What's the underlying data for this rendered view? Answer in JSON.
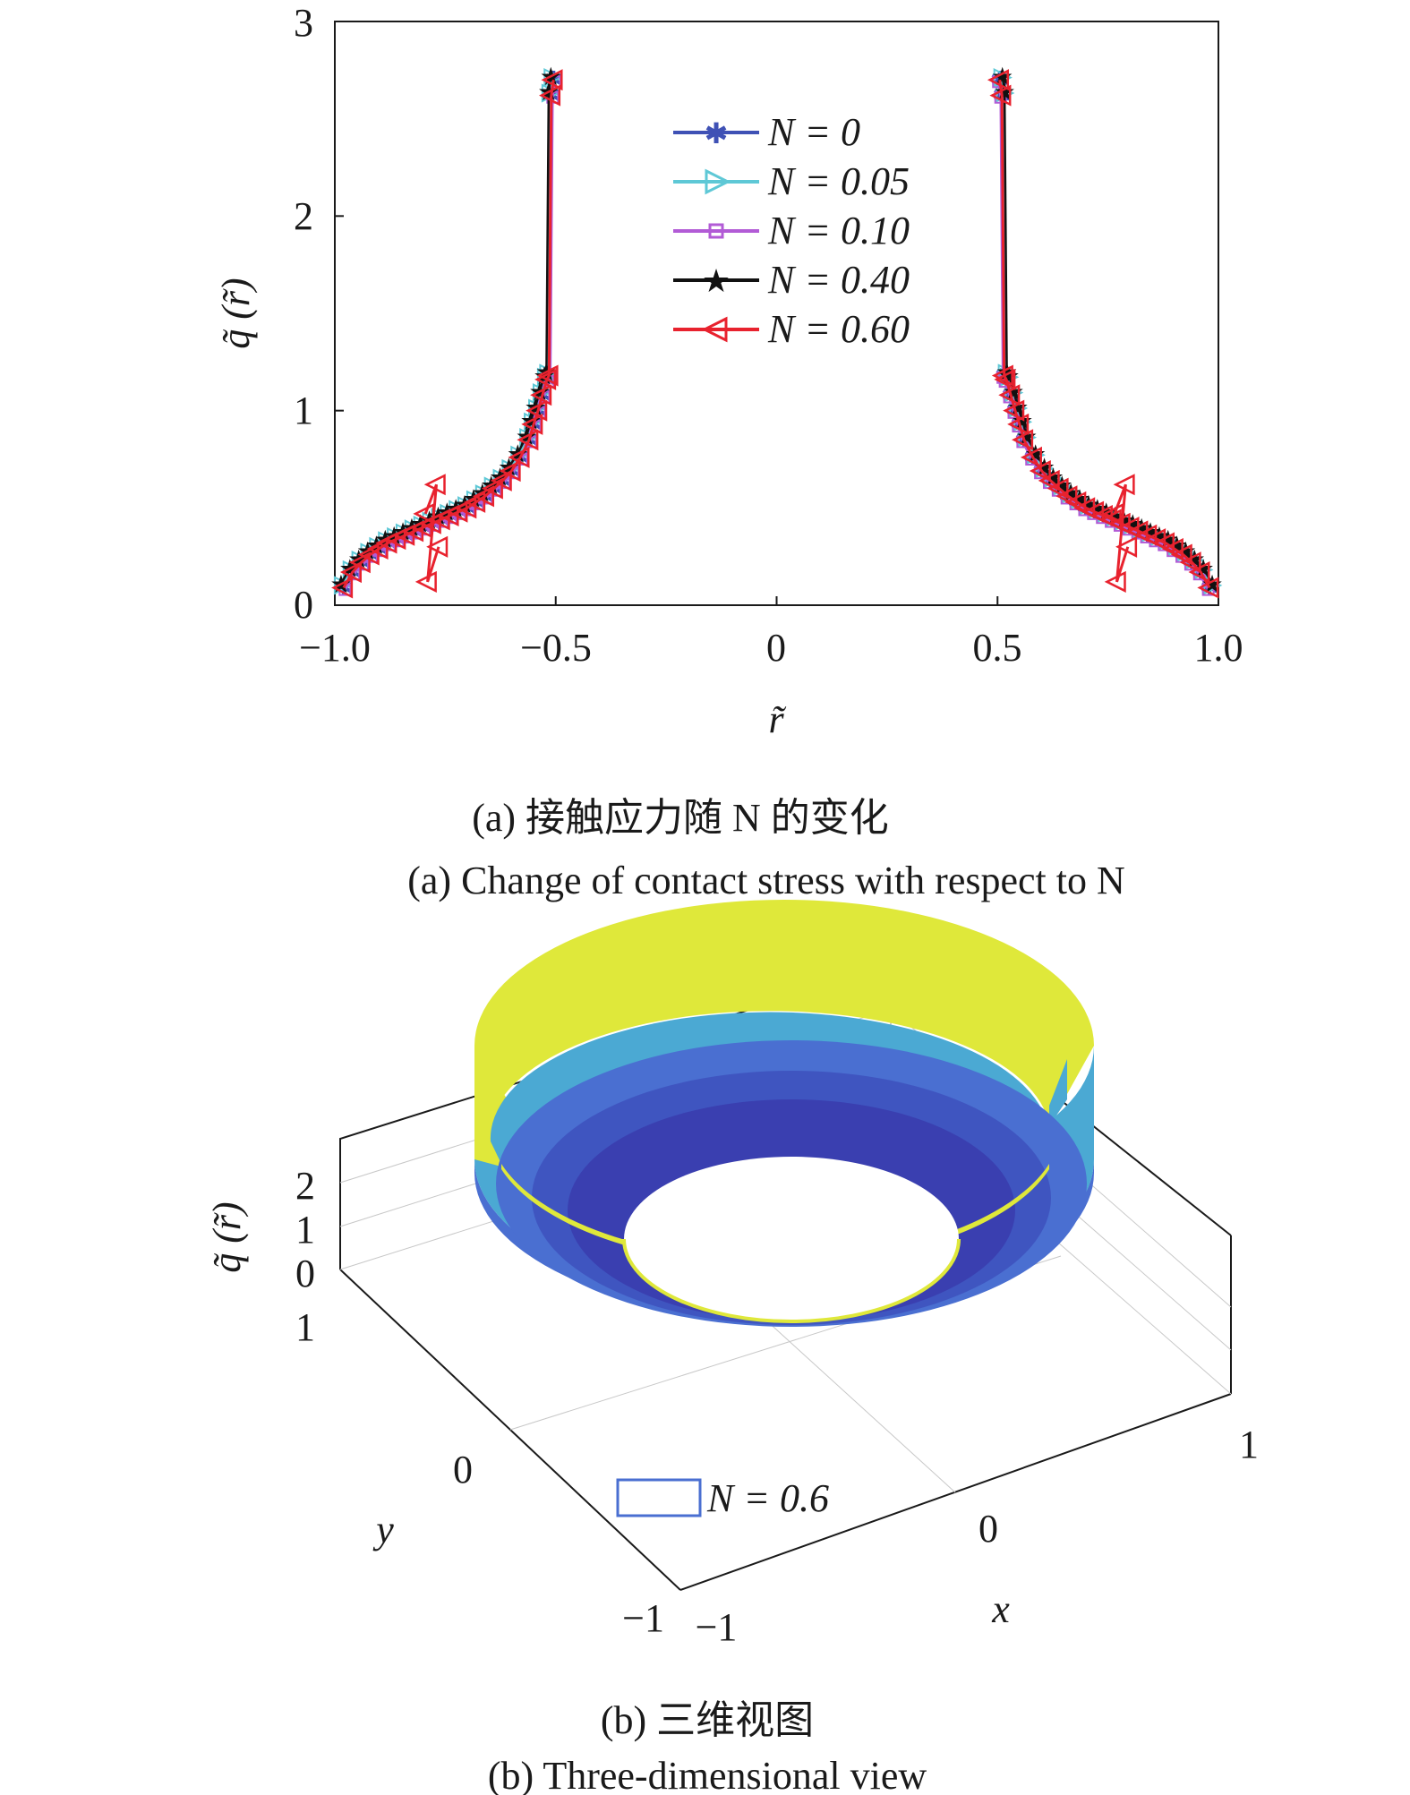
{
  "chart_data": [
    {
      "id": "a",
      "type": "line",
      "caption_zh": "(a) 接触应力随 N 的变化",
      "caption_en": "(a) Change of contact stress with respect to N",
      "xlabel": "r̃",
      "ylabel": "q̃ (r̃)",
      "xlim": [
        -1.0,
        1.0
      ],
      "ylim": [
        0,
        3
      ],
      "xticks": [
        "−1.0",
        "−0.5",
        "0",
        "0.5",
        "1.0"
      ],
      "xtick_values": [
        -1.0,
        -0.5,
        0,
        0.5,
        1.0
      ],
      "yticks": [
        "0",
        "1",
        "2",
        "3"
      ],
      "ytick_values": [
        0,
        1,
        2,
        3
      ],
      "grid": false,
      "legend_position": "top-center",
      "x_right": [
        0.98,
        0.96,
        0.94,
        0.92,
        0.9,
        0.88,
        0.86,
        0.84,
        0.82,
        0.8,
        0.78,
        0.76,
        0.74,
        0.72,
        0.7,
        0.68,
        0.66,
        0.64,
        0.62,
        0.6,
        0.58,
        0.56,
        0.55,
        0.54,
        0.53,
        0.52,
        0.515,
        0.51,
        0.505
      ],
      "y_right": [
        0.09,
        0.17,
        0.22,
        0.26,
        0.29,
        0.32,
        0.34,
        0.36,
        0.38,
        0.4,
        0.42,
        0.44,
        0.46,
        0.48,
        0.5,
        0.53,
        0.56,
        0.6,
        0.64,
        0.69,
        0.76,
        0.85,
        0.93,
        1.0,
        1.08,
        1.16,
        1.18,
        2.62,
        2.7
      ],
      "series": [
        {
          "name": "N = 0",
          "color": "#3f51b5",
          "marker": "asterisk"
        },
        {
          "name": "N = 0.05",
          "color": "#5ec8d6",
          "marker": "triangle-right"
        },
        {
          "name": "N = 0.10",
          "color": "#b25bd6",
          "marker": "square"
        },
        {
          "name": "N = 0.40",
          "color": "#111111",
          "marker": "star"
        },
        {
          "name": "N = 0.60",
          "color": "#e8222e",
          "marker": "triangle-left"
        }
      ]
    },
    {
      "id": "b",
      "type": "surface-3d",
      "caption_zh": "(b) 三维视图",
      "caption_en": "(b) Three-dimensional view",
      "xlabel": "x",
      "ylabel": "y",
      "zlabel": "q̃ (r̃)",
      "xticks": [
        "−1",
        "0",
        "1"
      ],
      "yticks": [
        "1",
        "0",
        "−1"
      ],
      "zticks": [
        "0",
        "1",
        "2"
      ],
      "legend": "N = 0.6",
      "colors": {
        "high": "#dfe83a",
        "mid": "#4ba9d3",
        "low": "#4a6fd1",
        "deep": "#3a3fb0"
      }
    }
  ]
}
